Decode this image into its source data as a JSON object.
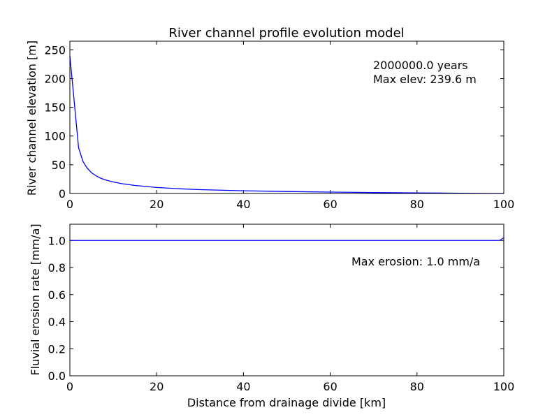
{
  "chart_data": [
    {
      "type": "line",
      "title": "River channel profile evolution model",
      "xlabel": "",
      "ylabel": "River channel elevation [m]",
      "xlim": [
        0,
        100
      ],
      "ylim": [
        0,
        265
      ],
      "xticks": [
        0,
        20,
        40,
        60,
        80,
        100
      ],
      "yticks": [
        0,
        50,
        100,
        150,
        200,
        250
      ],
      "grid": false,
      "line_color": "#0000ff",
      "annotations": [
        "2000000.0 years",
        "Max elev: 239.6 m"
      ],
      "series": [
        {
          "x": [
            0,
            1,
            2,
            3,
            4,
            5,
            6,
            7,
            8,
            10,
            12,
            15,
            20,
            25,
            30,
            40,
            50,
            60,
            70,
            80,
            90,
            100
          ],
          "y": [
            239.6,
            160,
            80,
            56,
            44,
            36,
            31,
            27,
            24,
            20,
            17,
            14,
            10.5,
            8.3,
            6.7,
            4.7,
            3.4,
            2.4,
            1.6,
            1.0,
            0.5,
            0.0
          ]
        }
      ]
    },
    {
      "type": "line",
      "title": "",
      "xlabel": "Distance from drainage divide [km]",
      "ylabel": "Fluvial erosion rate [mm/a]",
      "xlim": [
        0,
        100
      ],
      "ylim": [
        0,
        1.12
      ],
      "xticks": [
        0,
        20,
        40,
        60,
        80,
        100
      ],
      "yticks": [
        "0.0",
        "0.2",
        "0.4",
        "0.6",
        "0.8",
        "1.0"
      ],
      "grid": false,
      "line_color": "#0000ff",
      "annotations": [
        "Max erosion: 1.0 mm/a"
      ],
      "series": [
        {
          "x": [
            0,
            10,
            20,
            30,
            40,
            50,
            60,
            70,
            80,
            90,
            99,
            100
          ],
          "y": [
            1.0,
            1.0,
            1.0,
            1.0,
            1.0,
            1.0,
            1.0,
            1.0,
            1.0,
            1.0,
            1.0,
            1.02
          ]
        }
      ]
    }
  ]
}
